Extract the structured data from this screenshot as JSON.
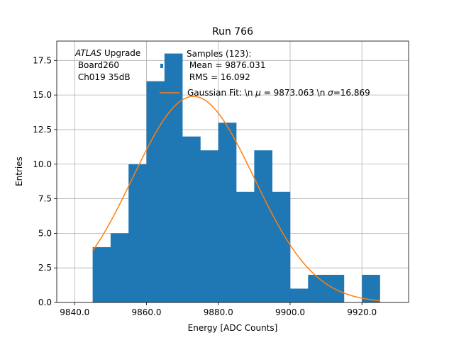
{
  "chart_data": {
    "type": "bar",
    "title": "Run 766",
    "xlabel": "Energy [ADC Counts]",
    "ylabel": "Entries",
    "xlim": [
      9835,
      9933
    ],
    "ylim": [
      0,
      18.9
    ],
    "xticks": [
      9840,
      9860,
      9880,
      9900,
      9920
    ],
    "xtick_labels": [
      "9840.0",
      "9860.0",
      "9880.0",
      "9900.0",
      "9920.0"
    ],
    "yticks": [
      0,
      2.5,
      5,
      7.5,
      10,
      12.5,
      15,
      17.5
    ],
    "ytick_labels": [
      "0.0",
      "2.5",
      "5.0",
      "7.5",
      "10.0",
      "12.5",
      "15.0",
      "17.5"
    ],
    "grid": true,
    "bin_edges": [
      9845,
      9850,
      9855,
      9860,
      9865,
      9870,
      9875,
      9880,
      9885,
      9890,
      9895,
      9900,
      9905,
      9910,
      9915,
      9920,
      9925
    ],
    "counts": [
      4,
      5,
      10,
      16,
      18,
      12,
      11,
      13,
      8,
      11,
      8,
      1,
      2,
      2,
      0,
      2
    ],
    "bar_color": "#1f77b4",
    "fit": {
      "mu": 9873.063,
      "sigma": 16.869,
      "amplitude": 14.9,
      "x_range": [
        9845,
        9925
      ],
      "color": "#ff7f0e"
    },
    "annotation": {
      "italic": "ATLAS",
      "line1_rest": " Upgrade",
      "line2": " Board260",
      "line3": " Ch019 35dB"
    },
    "legend": {
      "placement": "top-right",
      "samples_label": "Samples (123):",
      "mean_label": " Mean = 9876.031",
      "rms_label": " RMS = 16.092",
      "fit_prefix": "Gaussian Fit: \\n ",
      "fit_mu_symbol": "μ",
      "fit_mu_value": " = 9873.063 \\n ",
      "fit_sigma_symbol": "σ",
      "fit_sigma_value": "=16.869"
    }
  }
}
